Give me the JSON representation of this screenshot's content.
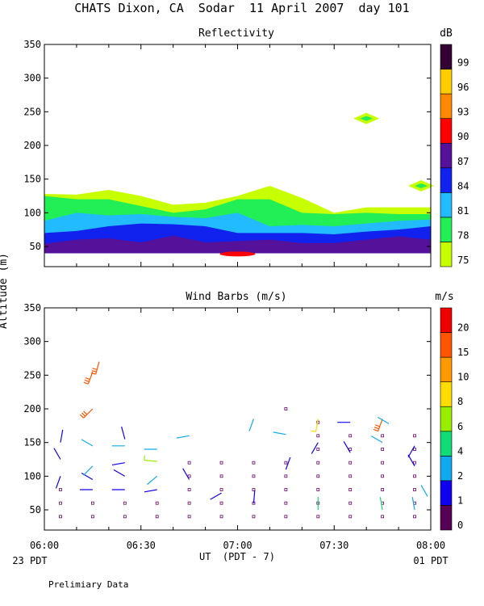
{
  "page": {
    "title": "CHATS Dixon, CA  Sodar  11 April 2007  day 101",
    "footer_note": "Prelimiary Data",
    "start_label": "23 PDT",
    "end_label": "01 PDT"
  },
  "chart_data": [
    {
      "type": "area",
      "title": "Reflectivity",
      "ylabel": "Altitude (m)",
      "xlabel": "UT  (PDT - 7)",
      "xlim": [
        "06:00",
        "08:00"
      ],
      "ylim": [
        20,
        350
      ],
      "x_ticks": [
        "06:00",
        "06:30",
        "07:00",
        "07:30",
        "08:00"
      ],
      "y_ticks": [
        50,
        100,
        150,
        200,
        250,
        300,
        350
      ],
      "colorbar": {
        "unit": "dB",
        "levels": [
          75,
          78,
          81,
          84,
          87,
          90,
          93,
          96,
          99
        ],
        "colors": [
          "#c8ff00",
          "#22ee55",
          "#22bbff",
          "#1122ee",
          "#551199",
          "#ff0000",
          "#ff8800",
          "#ffcc00",
          "#330033"
        ]
      },
      "x_minutes": [
        0,
        10,
        20,
        30,
        40,
        50,
        60,
        70,
        80,
        90,
        100,
        110,
        120
      ],
      "contours": [
        {
          "level": 75,
          "top": [
            128,
            127,
            134,
            125,
            112,
            115,
            125,
            140,
            122,
            100,
            108,
            108,
            108
          ]
        },
        {
          "level": 78,
          "top": [
            125,
            120,
            120,
            110,
            100,
            105,
            120,
            120,
            100,
            98,
            100,
            98,
            98
          ]
        },
        {
          "level": 81,
          "top": [
            88,
            100,
            96,
            98,
            94,
            92,
            100,
            80,
            82,
            80,
            84,
            88,
            90
          ]
        },
        {
          "level": 84,
          "top": [
            70,
            73,
            80,
            84,
            83,
            80,
            70,
            70,
            70,
            68,
            72,
            75,
            80
          ]
        },
        {
          "level": 87,
          "top": [
            54,
            60,
            62,
            56,
            66,
            56,
            58,
            60,
            55,
            55,
            60,
            65,
            60
          ]
        }
      ],
      "patches": [
        {
          "level": 90,
          "x": 60,
          "y": 40
        },
        {
          "level": 78,
          "x": 100,
          "y": 240
        },
        {
          "level": 78,
          "x": 117,
          "y": 140
        }
      ]
    },
    {
      "type": "scatter",
      "title": "Wind Barbs (m/s)",
      "ylabel": "Altitude (m)",
      "xlabel": "UT  (PDT - 7)",
      "xlim": [
        "06:00",
        "08:00"
      ],
      "ylim": [
        20,
        350
      ],
      "x_ticks": [
        "06:00",
        "06:30",
        "07:00",
        "07:30",
        "08:00"
      ],
      "y_ticks": [
        50,
        100,
        150,
        200,
        250,
        300,
        350
      ],
      "colorbar": {
        "unit": "m/s",
        "levels": [
          0,
          1,
          2,
          4,
          6,
          8,
          10,
          15,
          20
        ],
        "colors": [
          "#550055",
          "#1100ee",
          "#11aaee",
          "#11dd77",
          "#99ee00",
          "#ffdd00",
          "#ff9900",
          "#ff5500",
          "#ee0000"
        ]
      },
      "barbs": [
        {
          "t": 5,
          "alt": 100,
          "dir": 200,
          "speed": 1
        },
        {
          "t": 5,
          "alt": 125,
          "dir": 330,
          "speed": 1
        },
        {
          "t": 5,
          "alt": 150,
          "dir": 10,
          "speed": 1
        },
        {
          "t": 15,
          "alt": 80,
          "dir": 270,
          "speed": 1
        },
        {
          "t": 15,
          "alt": 95,
          "dir": 300,
          "speed": 1
        },
        {
          "t": 15,
          "alt": 115,
          "dir": 225,
          "speed": 2
        },
        {
          "t": 15,
          "alt": 145,
          "dir": 300,
          "speed": 2
        },
        {
          "t": 15,
          "alt": 200,
          "dir": 225,
          "speed": 15
        },
        {
          "t": 15,
          "alt": 255,
          "dir": 200,
          "speed": 15
        },
        {
          "t": 17,
          "alt": 270,
          "dir": 195,
          "speed": 15
        },
        {
          "t": 25,
          "alt": 80,
          "dir": 270,
          "speed": 1
        },
        {
          "t": 25,
          "alt": 100,
          "dir": 300,
          "speed": 1
        },
        {
          "t": 25,
          "alt": 120,
          "dir": 260,
          "speed": 1
        },
        {
          "t": 25,
          "alt": 145,
          "dir": 270,
          "speed": 2
        },
        {
          "t": 25,
          "alt": 155,
          "dir": 345,
          "speed": 1
        },
        {
          "t": 35,
          "alt": 80,
          "dir": 260,
          "speed": 1
        },
        {
          "t": 35,
          "alt": 100,
          "dir": 230,
          "speed": 2
        },
        {
          "t": 35,
          "alt": 122,
          "dir": 275,
          "speed": 6
        },
        {
          "t": 35,
          "alt": 140,
          "dir": 270,
          "speed": 2
        },
        {
          "t": 45,
          "alt": 95,
          "dir": 330,
          "speed": 1
        },
        {
          "t": 45,
          "alt": 160,
          "dir": 260,
          "speed": 2
        },
        {
          "t": 55,
          "alt": 75,
          "dir": 240,
          "speed": 1
        },
        {
          "t": 65,
          "alt": 185,
          "dir": 200,
          "speed": 2
        },
        {
          "t": 65,
          "alt": 60,
          "dir": 5,
          "speed": 1
        },
        {
          "t": 75,
          "alt": 162,
          "dir": 280,
          "speed": 2
        },
        {
          "t": 75,
          "alt": 110,
          "dir": 20,
          "speed": 1
        },
        {
          "t": 85,
          "alt": 50,
          "dir": 0,
          "speed": 4
        },
        {
          "t": 85,
          "alt": 150,
          "dir": 210,
          "speed": 1
        },
        {
          "t": 85,
          "alt": 185,
          "dir": 190,
          "speed": 8
        },
        {
          "t": 95,
          "alt": 180,
          "dir": 270,
          "speed": 1
        },
        {
          "t": 95,
          "alt": 135,
          "dir": 330,
          "speed": 1
        },
        {
          "t": 105,
          "alt": 50,
          "dir": 350,
          "speed": 4
        },
        {
          "t": 105,
          "alt": 185,
          "dir": 200,
          "speed": 15
        },
        {
          "t": 105,
          "alt": 150,
          "dir": 300,
          "speed": 2
        },
        {
          "t": 107,
          "alt": 178,
          "dir": 300,
          "speed": 2
        },
        {
          "t": 115,
          "alt": 50,
          "dir": 350,
          "speed": 2
        },
        {
          "t": 115,
          "alt": 145,
          "dir": 210,
          "speed": 1
        },
        {
          "t": 115,
          "alt": 115,
          "dir": 330,
          "speed": 1
        },
        {
          "t": 119,
          "alt": 70,
          "dir": 330,
          "speed": 2
        }
      ],
      "calm_dots": [
        {
          "t": 5,
          "alt": [
            40,
            60,
            80
          ]
        },
        {
          "t": 15,
          "alt": [
            40,
            60
          ]
        },
        {
          "t": 25,
          "alt": [
            40,
            60
          ]
        },
        {
          "t": 35,
          "alt": [
            40,
            60
          ]
        },
        {
          "t": 45,
          "alt": [
            40,
            60,
            80,
            100,
            120
          ]
        },
        {
          "t": 55,
          "alt": [
            40,
            60,
            80,
            100,
            120
          ]
        },
        {
          "t": 65,
          "alt": [
            40,
            60,
            80,
            100,
            120
          ]
        },
        {
          "t": 75,
          "alt": [
            40,
            60,
            80,
            100,
            120,
            200
          ]
        },
        {
          "t": 85,
          "alt": [
            40,
            60,
            80,
            100,
            120,
            140,
            160,
            180
          ]
        },
        {
          "t": 95,
          "alt": [
            40,
            60,
            80,
            100,
            120,
            140,
            160
          ]
        },
        {
          "t": 105,
          "alt": [
            40,
            60,
            80,
            100,
            120,
            140,
            160
          ]
        },
        {
          "t": 115,
          "alt": [
            40,
            60,
            80,
            100,
            120,
            140,
            160
          ]
        }
      ]
    }
  ]
}
